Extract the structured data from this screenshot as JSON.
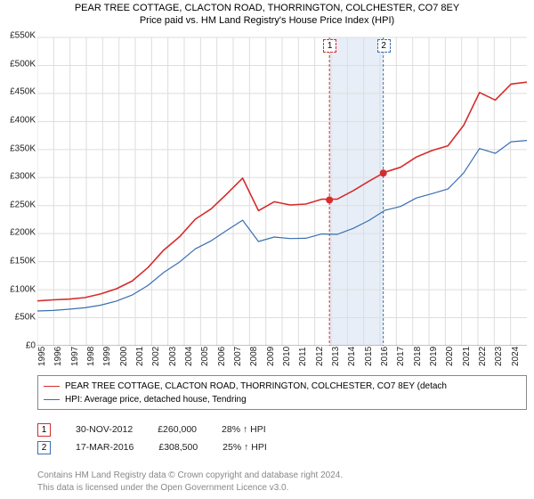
{
  "title_line1": "PEAR TREE COTTAGE, CLACTON ROAD, THORRINGTON, COLCHESTER, CO7 8EY",
  "title_line2": "Price paid vs. HM Land Registry's House Price Index (HPI)",
  "chart": {
    "type": "line",
    "background_color": "#ffffff",
    "grid_color": "#dddddd",
    "axis_color": "#888888",
    "ylim": [
      0,
      550
    ],
    "ytick_step": 50,
    "ytick_labels": [
      "£0",
      "£50K",
      "£100K",
      "£150K",
      "£200K",
      "£250K",
      "£300K",
      "£350K",
      "£400K",
      "£450K",
      "£500K",
      "£550K"
    ],
    "xmin_year": 1995,
    "xmax_year": 2025,
    "xlabels": [
      "1995",
      "1996",
      "1997",
      "1998",
      "1999",
      "2000",
      "2001",
      "2002",
      "2003",
      "2004",
      "2005",
      "2006",
      "2007",
      "2008",
      "2009",
      "2010",
      "2011",
      "2012",
      "2013",
      "2014",
      "2015",
      "2016",
      "2017",
      "2018",
      "2019",
      "2020",
      "2021",
      "2022",
      "2023",
      "2024"
    ],
    "series": [
      {
        "name": "property",
        "label": "PEAR TREE COTTAGE, CLACTON ROAD, THORRINGTON, COLCHESTER, CO7 8EY (detach",
        "color": "#d62c2c",
        "line_width": 1.6,
        "values": [
          80,
          82,
          83,
          86,
          92,
          102,
          115,
          140,
          170,
          195,
          225,
          245,
          270,
          300,
          240,
          258,
          250,
          254,
          260,
          263,
          275,
          295,
          308,
          320,
          335,
          350,
          355,
          395,
          450,
          440,
          465,
          472
        ]
      },
      {
        "name": "hpi",
        "label": "HPI: Average price, detached house, Tendring",
        "color": "#3a6fb0",
        "line_width": 1.2,
        "values": [
          62,
          63,
          65,
          68,
          72,
          80,
          90,
          108,
          130,
          150,
          172,
          188,
          205,
          225,
          185,
          195,
          190,
          193,
          198,
          200,
          208,
          225,
          240,
          250,
          262,
          273,
          278,
          310,
          350,
          345,
          362,
          368
        ]
      }
    ],
    "highlight_band": {
      "start_year": 2012.9,
      "end_year": 2016.2,
      "fill": "#e8eef7"
    },
    "markers": [
      {
        "num": "1",
        "year": 2012.9,
        "border_color": "#d62c2c",
        "sale_point_y": 260
      },
      {
        "num": "2",
        "year": 2016.2,
        "border_color": "#3a6fb0",
        "sale_point_y": 308
      }
    ]
  },
  "sales": [
    {
      "num": "1",
      "border_color": "#d62c2c",
      "date": "30-NOV-2012",
      "price": "£260,000",
      "pct": "28% ↑ HPI"
    },
    {
      "num": "2",
      "border_color": "#3a6fb0",
      "date": "17-MAR-2016",
      "price": "£308,500",
      "pct": "25% ↑ HPI"
    }
  ],
  "footer_line1": "Contains HM Land Registry data © Crown copyright and database right 2024.",
  "footer_line2": "This data is licensed under the Open Government Licence v3.0."
}
